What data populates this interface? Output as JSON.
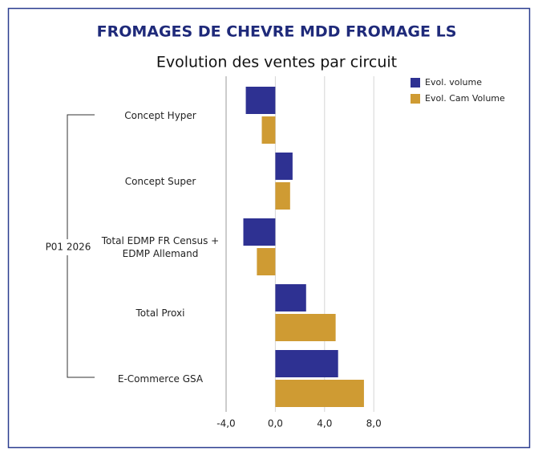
{
  "chart_data": {
    "type": "hbar",
    "title": "FROMAGES DE CHEVRE MDD FROMAGE LS",
    "subtitle": "Evolution des ventes par circuit",
    "group_label": "P01 2026",
    "categories": [
      "Concept Hyper",
      "Concept Super",
      "Total EDMP FR Census + EDMP Allemand",
      "Total Proxi",
      "E-Commerce GSA"
    ],
    "series": [
      {
        "name": "Evol. volume",
        "color": "#2e3192",
        "values": [
          -2.4,
          1.4,
          -2.6,
          2.5,
          5.1
        ]
      },
      {
        "name": "Evol. Cam Volume",
        "color": "#cf9b33",
        "values": [
          -1.1,
          1.2,
          -1.5,
          4.9,
          7.2
        ]
      }
    ],
    "xlim": [
      -4,
      9
    ],
    "xticks": [
      {
        "value": -4,
        "label": "-4,0"
      },
      {
        "value": 0,
        "label": "0,0"
      },
      {
        "value": 4,
        "label": "4,0"
      },
      {
        "value": 8,
        "label": "8,0"
      }
    ],
    "grid": true,
    "legend": "top-right"
  }
}
